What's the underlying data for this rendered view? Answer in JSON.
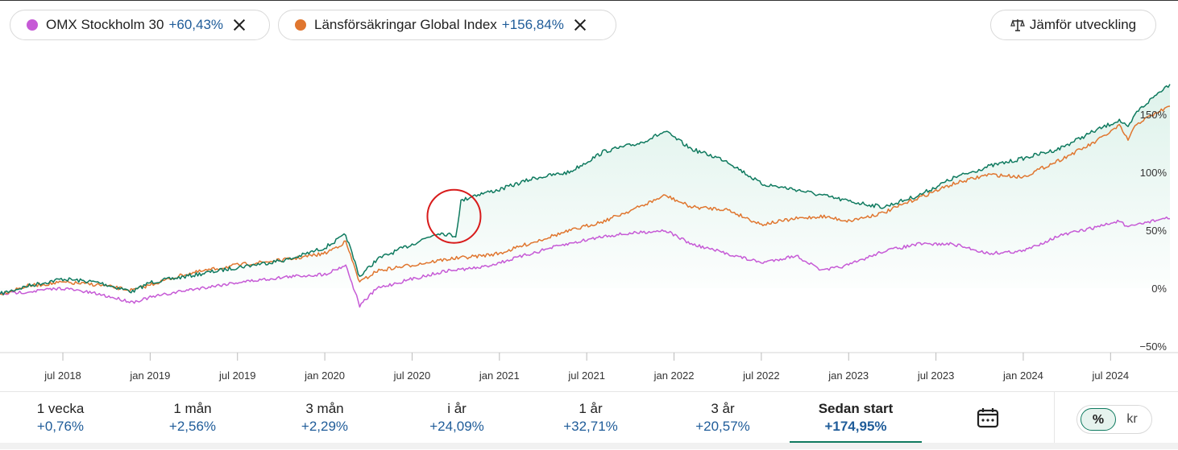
{
  "legend_chips": [
    {
      "name": "OMX Stockholm 30",
      "change": "+60,43%",
      "color": "#c65ad6"
    },
    {
      "name": "Länsförsäkringar Global Index",
      "change": "+156,84%",
      "color": "#e0762f"
    }
  ],
  "compare_button": {
    "label": "Jämför utveckling",
    "icon": "scale-icon"
  },
  "chart_data": {
    "type": "line",
    "y_unit": "%",
    "y_ticks": [
      "150%",
      "100%",
      "50%",
      "0%",
      "−50%"
    ],
    "y_tick_values": [
      150,
      100,
      50,
      0,
      -50
    ],
    "ylim": [
      -50,
      160
    ],
    "x_ticks": [
      "jul 2018",
      "jan 2019",
      "jul 2019",
      "jan 2020",
      "jul 2020",
      "jan 2021",
      "jul 2021",
      "jan 2022",
      "jul 2022",
      "jan 2023",
      "jul 2023",
      "jan 2024",
      "jul 2024"
    ],
    "x_tick_dates": [
      2018.5,
      2019.0,
      2019.5,
      2020.0,
      2020.5,
      2021.0,
      2021.5,
      2022.0,
      2022.5,
      2023.0,
      2023.5,
      2024.0,
      2024.5
    ],
    "xlim": [
      2018.14,
      2024.84
    ],
    "grid": false,
    "series": [
      {
        "name": "",
        "color": "#0f7a5f",
        "x": [
          2018.14,
          2018.3,
          2018.5,
          2018.7,
          2018.9,
          2019.0,
          2019.2,
          2019.5,
          2019.8,
          2020.0,
          2020.12,
          2020.2,
          2020.3,
          2020.5,
          2020.65,
          2020.75,
          2020.78,
          2020.85,
          2021.0,
          2021.2,
          2021.4,
          2021.6,
          2021.8,
          2021.95,
          2022.1,
          2022.3,
          2022.5,
          2022.7,
          2022.85,
          2023.0,
          2023.2,
          2023.4,
          2023.6,
          2023.8,
          2024.0,
          2024.2,
          2024.4,
          2024.55,
          2024.6,
          2024.65,
          2024.8,
          2024.84
        ],
        "y": [
          -5,
          2,
          8,
          5,
          -3,
          5,
          10,
          18,
          25,
          35,
          46,
          10,
          25,
          38,
          48,
          45,
          75,
          80,
          85,
          95,
          100,
          118,
          125,
          135,
          120,
          110,
          90,
          85,
          80,
          75,
          70,
          80,
          95,
          105,
          112,
          120,
          135,
          145,
          138,
          152,
          172,
          176
        ]
      },
      {
        "name": "Länsförsäkringar Global Index",
        "color": "#e0762f",
        "x": [
          2018.14,
          2018.3,
          2018.5,
          2018.7,
          2018.9,
          2019.0,
          2019.2,
          2019.5,
          2019.8,
          2020.0,
          2020.12,
          2020.2,
          2020.3,
          2020.5,
          2020.7,
          2020.9,
          2021.0,
          2021.3,
          2021.6,
          2021.8,
          2021.95,
          2022.1,
          2022.3,
          2022.5,
          2022.7,
          2022.85,
          2023.0,
          2023.2,
          2023.4,
          2023.6,
          2023.8,
          2024.0,
          2024.2,
          2024.4,
          2024.55,
          2024.6,
          2024.65,
          2024.8,
          2024.84
        ],
        "y": [
          -5,
          2,
          5,
          3,
          -2,
          3,
          12,
          20,
          25,
          30,
          40,
          5,
          15,
          20,
          25,
          28,
          30,
          45,
          58,
          70,
          80,
          70,
          68,
          55,
          60,
          62,
          58,
          65,
          78,
          90,
          98,
          96,
          110,
          125,
          140,
          128,
          142,
          154,
          157
        ]
      },
      {
        "name": "OMX Stockholm 30",
        "color": "#c65ad6",
        "x": [
          2018.14,
          2018.3,
          2018.5,
          2018.7,
          2018.9,
          2019.0,
          2019.2,
          2019.5,
          2019.8,
          2020.0,
          2020.12,
          2020.2,
          2020.3,
          2020.5,
          2020.7,
          2020.9,
          2021.0,
          2021.3,
          2021.6,
          2021.8,
          2021.95,
          2022.1,
          2022.3,
          2022.5,
          2022.7,
          2022.85,
          2023.0,
          2023.2,
          2023.4,
          2023.6,
          2023.8,
          2024.0,
          2024.2,
          2024.4,
          2024.55,
          2024.6,
          2024.65,
          2024.8,
          2024.84
        ],
        "y": [
          -5,
          -3,
          0,
          -5,
          -12,
          -8,
          -2,
          5,
          10,
          12,
          20,
          -15,
          0,
          8,
          15,
          18,
          22,
          35,
          45,
          48,
          50,
          38,
          30,
          22,
          28,
          15,
          20,
          32,
          38,
          38,
          30,
          32,
          45,
          52,
          58,
          52,
          55,
          60,
          60
        ]
      }
    ],
    "annotation": {
      "shape": "circle",
      "color": "#d81b1b",
      "x": 2020.74,
      "y": 62
    }
  },
  "periods": [
    {
      "label": "1 vecka",
      "value": "+0,76%"
    },
    {
      "label": "1 mån",
      "value": "+2,56%"
    },
    {
      "label": "3 mån",
      "value": "+2,29%"
    },
    {
      "label": "i år",
      "value": "+24,09%"
    },
    {
      "label": "1 år",
      "value": "+32,71%"
    },
    {
      "label": "3 år",
      "value": "+20,57%"
    },
    {
      "label": "Sedan start",
      "value": "+174,95%",
      "active": true
    }
  ],
  "calendar_icon": "calendar-icon",
  "unit_toggle": {
    "options": [
      "%",
      "kr"
    ],
    "selected": "%"
  }
}
